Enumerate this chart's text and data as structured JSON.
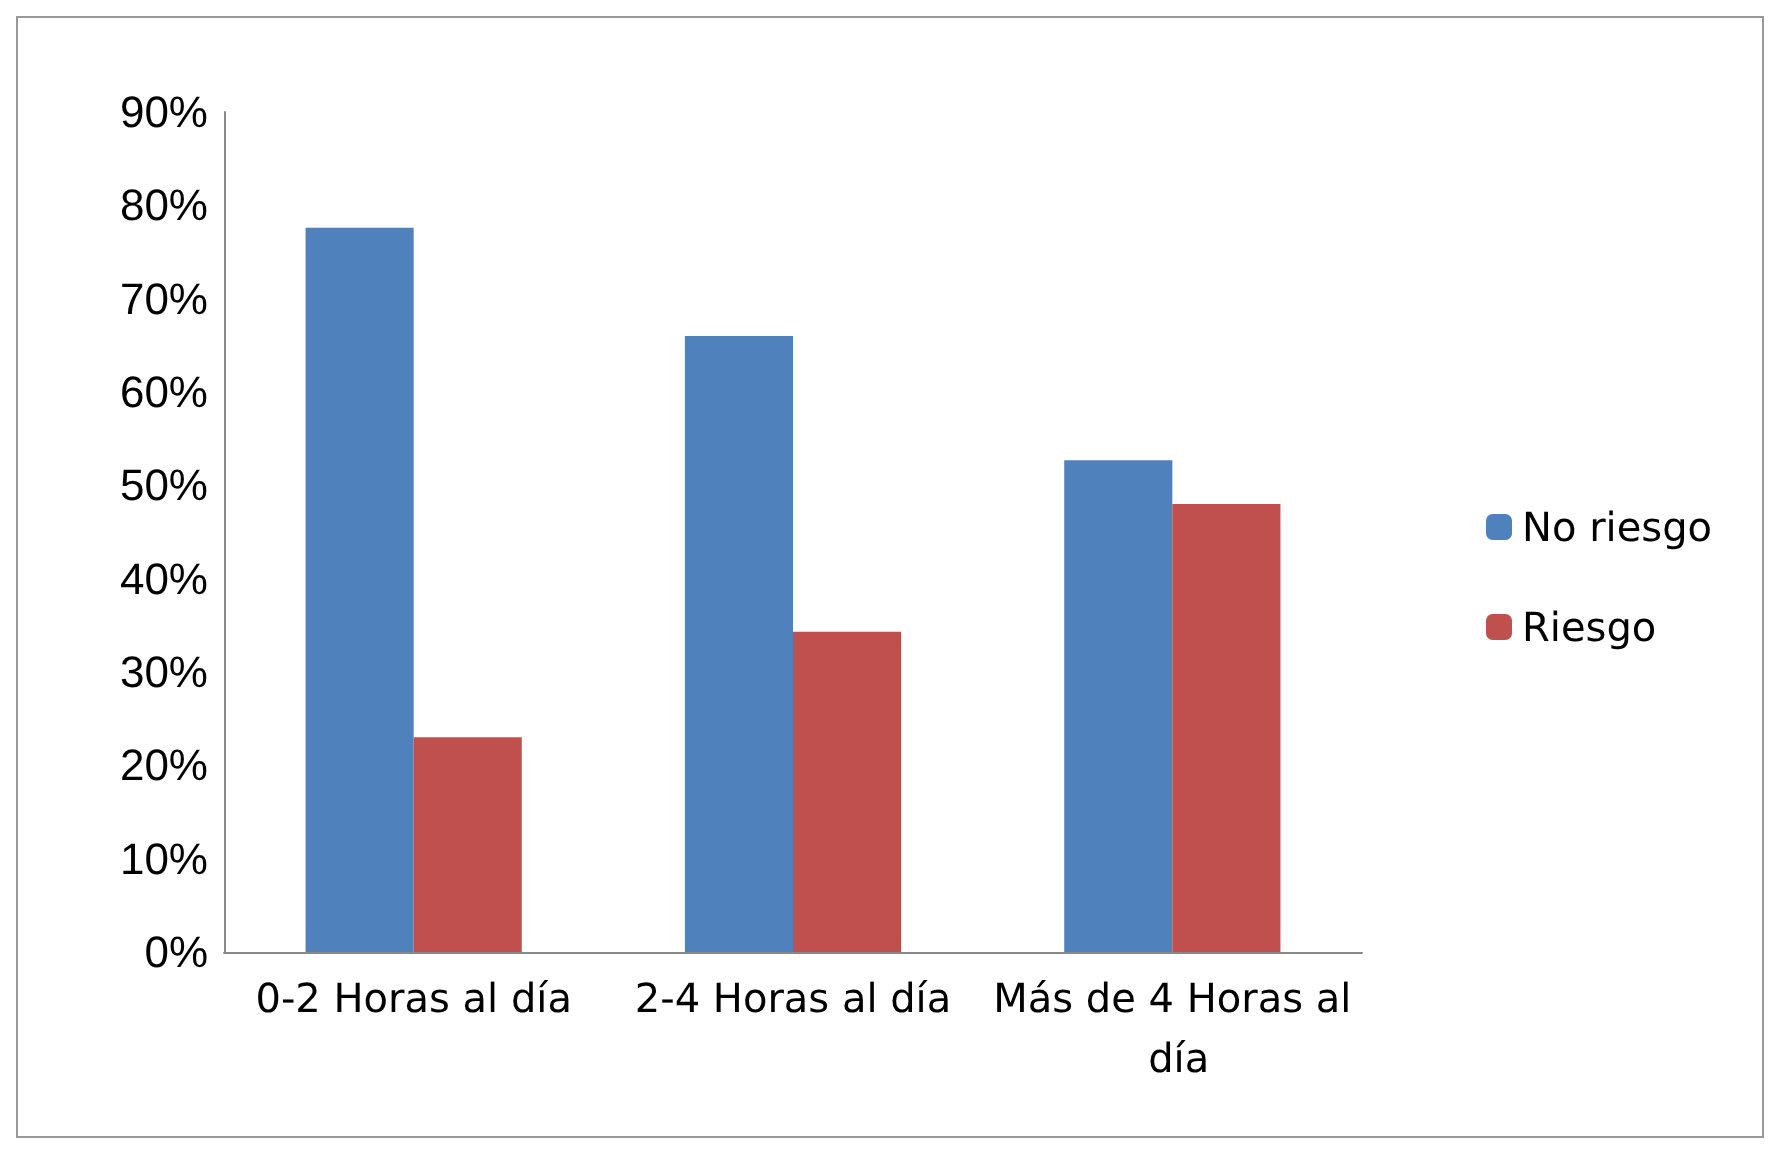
{
  "chart_data": {
    "type": "bar",
    "categories": [
      "0-2 Horas al día",
      "2-4 Horas al día",
      "Más de 4 Horas al día"
    ],
    "series": [
      {
        "name": "No riesgo",
        "color": "#4f81bd",
        "values": [
          77.6,
          66,
          52.7
        ]
      },
      {
        "name": "Riesgo",
        "color": "#c0504d",
        "values": [
          23,
          34.3,
          48
        ]
      }
    ],
    "ylim": [
      0,
      90
    ],
    "yticks": [
      {
        "value": 0,
        "label": "0%"
      },
      {
        "value": 10,
        "label": "10%"
      },
      {
        "value": 20,
        "label": "20%"
      },
      {
        "value": 30,
        "label": "30%"
      },
      {
        "value": 40,
        "label": "40%"
      },
      {
        "value": 50,
        "label": "50%"
      },
      {
        "value": 60,
        "label": "60%"
      },
      {
        "value": 70,
        "label": "70%"
      },
      {
        "value": 80,
        "label": "80%"
      },
      {
        "value": 90,
        "label": "90%"
      }
    ],
    "grid": false,
    "legend": "right"
  }
}
